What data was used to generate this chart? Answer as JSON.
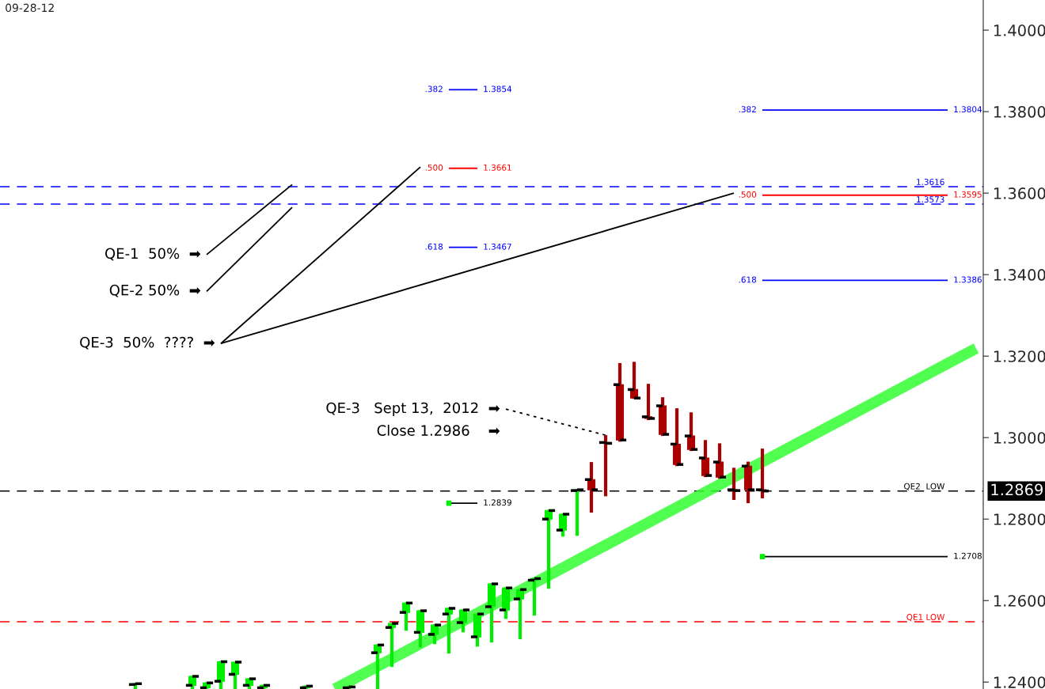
{
  "chart_data": {
    "type": "candlestick",
    "title": "09-28-12",
    "colors": [
      null,
      null,
      null,
      null,
      null,
      null,
      null,
      null,
      null,
      "#00ee00",
      null,
      null,
      null,
      "#00ee00",
      "#00ee00",
      "#00ee00",
      "#00ee00",
      "#00ee00",
      "#00ee00",
      null,
      null,
      "#00ee00",
      null,
      null,
      "#00ee00",
      null,
      "#00ee00",
      "#00ee00",
      "#00ee00",
      "#00ee00",
      "#00ee00",
      "#00ee00",
      "#00ee00",
      "#00ee00",
      "#00ee00",
      "#00ee00",
      "#00ee00",
      "#00ee00",
      "#00ee00",
      "#00ee00",
      "#00ee00",
      "#aa0000",
      "#aa0000",
      "#aa0000",
      "#aa0000",
      "#aa0000",
      "#aa0000",
      "#aa0000",
      "#aa0000",
      "#aa0000",
      "#aa0000",
      "#aa0000",
      "#aa0000",
      "#aa0000",
      null,
      null,
      null,
      null,
      null,
      null,
      null,
      null,
      null,
      null,
      null,
      null,
      null,
      null,
      null
    ],
    "categories": [
      null,
      null,
      null,
      null,
      null,
      null,
      null,
      null,
      null,
      null,
      null,
      null,
      null,
      null,
      null,
      null,
      null,
      null,
      null,
      null,
      null,
      null,
      null,
      null,
      null,
      null,
      null,
      null,
      null,
      null,
      null,
      null,
      null,
      null,
      null,
      null,
      null,
      null,
      null,
      null,
      null,
      null,
      null,
      null,
      null,
      null,
      null,
      null,
      null,
      null,
      null,
      null,
      null,
      null,
      null,
      null,
      null,
      null,
      null,
      null,
      null,
      null,
      null,
      null,
      null,
      null,
      null,
      null,
      null
    ],
    "ohlc": [
      null,
      null,
      null,
      null,
      null,
      null,
      null,
      null,
      null,
      [
        1.2394,
        1.2398,
        1.2383,
        1.2396
      ],
      null,
      null,
      null,
      [
        1.2392,
        1.2416,
        1.2383,
        1.2414
      ],
      [
        1.2386,
        1.24,
        1.2383,
        1.2398
      ],
      [
        1.2402,
        1.2452,
        1.2383,
        1.245
      ],
      [
        1.2419,
        1.245,
        1.2383,
        1.2449
      ],
      [
        1.2392,
        1.241,
        1.2383,
        1.2408
      ],
      [
        1.2386,
        1.2394,
        1.2383,
        1.2392
      ],
      null,
      null,
      [
        1.2386,
        1.2392,
        1.2383,
        1.239
      ],
      null,
      null,
      [
        1.2386,
        1.2392,
        1.2383,
        1.2388
      ],
      null,
      [
        1.2472,
        1.2493,
        1.2383,
        1.2491
      ],
      [
        1.2534,
        1.2544,
        1.2437,
        1.2544
      ],
      [
        1.2571,
        1.2596,
        1.2526,
        1.2594
      ],
      [
        1.2522,
        1.2577,
        1.2485,
        1.2575
      ],
      [
        1.2517,
        1.2542,
        1.2493,
        1.254
      ],
      [
        1.2567,
        1.2583,
        1.247,
        1.2581
      ],
      [
        1.2546,
        1.2579,
        1.2522,
        1.2577
      ],
      [
        1.2511,
        1.2569,
        1.2487,
        1.2567
      ],
      [
        1.2585,
        1.2643,
        1.2497,
        1.2641
      ],
      [
        1.2577,
        1.2633,
        1.2555,
        1.2631
      ],
      [
        1.2604,
        1.2629,
        1.2505,
        1.2627
      ],
      [
        1.265,
        1.2656,
        1.2563,
        1.2654
      ],
      [
        1.28,
        1.2823,
        1.2629,
        1.2821
      ],
      [
        1.2773,
        1.2814,
        1.2757,
        1.2812
      ],
      [
        1.287,
        1.2874,
        1.2759,
        1.2872
      ],
      [
        1.2897,
        1.294,
        1.2816,
        1.2872
      ],
      [
        1.2988,
        1.3006,
        1.2856,
        1.2986
      ],
      [
        1.313,
        1.3183,
        1.299,
        1.2994
      ],
      [
        1.3118,
        1.3186,
        1.3095,
        1.3097
      ],
      [
        1.3051,
        1.3132,
        1.3043,
        1.3047
      ],
      [
        1.3078,
        1.3099,
        1.3004,
        1.3008
      ],
      [
        1.2984,
        1.3072,
        1.293,
        1.2934
      ],
      [
        1.3004,
        1.3062,
        1.2967,
        1.2971
      ],
      [
        1.295,
        1.2994,
        1.2903,
        1.2907
      ],
      [
        1.294,
        1.2986,
        1.2899,
        1.2903
      ],
      [
        1.2872,
        1.2926,
        1.2847,
        1.287
      ],
      [
        1.293,
        1.2941,
        1.2839,
        1.2872
      ],
      [
        1.2872,
        1.2973,
        1.2851,
        1.2869
      ],
      null,
      null,
      null,
      null,
      null,
      null,
      null,
      null,
      null,
      null,
      null,
      null,
      null,
      null,
      null
    ],
    "series": [
      {
        "type": "line",
        "color": "#33ff33",
        "values": [
          null,
          null,
          null,
          null,
          null,
          null,
          null,
          null,
          null,
          null,
          null,
          null,
          null,
          null,
          null,
          null,
          null,
          null,
          null,
          null,
          null,
          null,
          null,
          1.2383,
          null,
          null,
          null,
          null,
          null,
          null,
          null,
          null,
          null,
          null,
          null,
          null,
          null,
          null,
          null,
          null,
          null,
          null,
          null,
          null,
          null,
          null,
          null,
          null,
          null,
          null,
          null,
          null,
          null,
          null,
          null,
          null,
          null,
          null,
          null,
          null,
          null,
          null,
          null,
          null,
          null,
          null,
          null,
          null,
          1.3219
        ]
      },
      {
        "type": "line",
        "color": "#0000ff",
        "values": [
          null,
          null,
          null,
          null,
          null,
          null,
          null,
          null,
          null,
          null,
          null,
          null,
          null,
          null,
          null,
          null,
          null,
          null,
          null,
          null,
          null,
          null,
          null,
          null,
          null,
          null,
          null,
          null,
          null,
          null,
          null,
          1.3854,
          null,
          1.3854,
          null,
          null,
          null,
          null,
          null,
          null,
          null,
          null,
          null,
          null,
          null,
          null,
          null,
          null,
          null,
          null,
          null,
          null,
          null,
          null,
          null,
          null,
          null,
          null,
          null,
          null,
          null,
          null,
          null,
          null,
          null,
          null,
          null,
          null,
          null
        ],
        "value_labels": [
          null,
          null,
          null,
          null,
          null,
          null,
          null,
          null,
          null,
          null,
          null,
          null,
          null,
          null,
          null,
          null,
          null,
          null,
          null,
          null,
          null,
          null,
          null,
          null,
          null,
          null,
          null,
          null,
          null,
          null,
          null,
          null,
          null,
          "1.3854",
          null,
          null,
          null,
          null,
          null,
          null,
          null,
          null,
          null,
          null,
          null,
          null,
          null,
          null,
          null,
          null,
          null,
          null,
          null,
          null,
          null,
          null,
          null,
          null,
          null,
          null,
          null,
          null,
          null,
          null,
          null,
          null,
          null,
          null,
          null
        ]
      },
      {
        "type": "line",
        "color": "#ff0000",
        "values": [
          null,
          null,
          null,
          null,
          null,
          null,
          null,
          null,
          null,
          null,
          null,
          null,
          null,
          null,
          null,
          null,
          null,
          null,
          null,
          null,
          null,
          null,
          null,
          null,
          null,
          null,
          null,
          null,
          null,
          null,
          null,
          1.3661,
          null,
          1.3661,
          null,
          null,
          null,
          null,
          null,
          null,
          null,
          null,
          null,
          null,
          null,
          null,
          null,
          null,
          null,
          null,
          null,
          null,
          null,
          null,
          null,
          null,
          null,
          null,
          null,
          null,
          null,
          null,
          null,
          null,
          null,
          null,
          null,
          null,
          null
        ],
        "value_labels": [
          null,
          null,
          null,
          null,
          null,
          null,
          null,
          null,
          null,
          null,
          null,
          null,
          null,
          null,
          null,
          null,
          null,
          null,
          null,
          null,
          null,
          null,
          null,
          null,
          null,
          null,
          null,
          null,
          null,
          null,
          null,
          null,
          null,
          "1.3661",
          null,
          null,
          null,
          null,
          null,
          null,
          null,
          null,
          null,
          null,
          null,
          null,
          null,
          null,
          null,
          null,
          null,
          null,
          null,
          null,
          null,
          null,
          null,
          null,
          null,
          null,
          null,
          null,
          null,
          null,
          null,
          null,
          null,
          null,
          null
        ]
      },
      {
        "type": "line",
        "color": "#0000ff",
        "values": [
          null,
          null,
          null,
          null,
          null,
          null,
          null,
          null,
          null,
          null,
          null,
          null,
          null,
          null,
          null,
          null,
          null,
          null,
          null,
          null,
          null,
          null,
          null,
          null,
          null,
          null,
          null,
          null,
          null,
          null,
          null,
          1.3467,
          null,
          1.3467,
          null,
          null,
          null,
          null,
          null,
          null,
          null,
          null,
          null,
          null,
          null,
          null,
          null,
          null,
          null,
          null,
          null,
          null,
          null,
          null,
          null,
          null,
          null,
          null,
          null,
          null,
          null,
          null,
          null,
          null,
          null,
          null,
          null,
          null,
          null
        ],
        "value_labels": [
          null,
          null,
          null,
          null,
          null,
          null,
          null,
          null,
          null,
          null,
          null,
          null,
          null,
          null,
          null,
          null,
          null,
          null,
          null,
          null,
          null,
          null,
          null,
          null,
          null,
          null,
          null,
          null,
          null,
          null,
          null,
          null,
          null,
          "1.3467",
          null,
          null,
          null,
          null,
          null,
          null,
          null,
          null,
          null,
          null,
          null,
          null,
          null,
          null,
          null,
          null,
          null,
          null,
          null,
          null,
          null,
          null,
          null,
          null,
          null,
          null,
          null,
          null,
          null,
          null,
          null,
          null,
          null,
          null,
          null
        ]
      },
      {
        "type": "line",
        "color": "#0000ff",
        "values": [
          null,
          null,
          null,
          null,
          null,
          null,
          null,
          null,
          null,
          null,
          null,
          null,
          null,
          null,
          null,
          null,
          null,
          null,
          null,
          null,
          null,
          null,
          null,
          null,
          null,
          null,
          null,
          null,
          null,
          null,
          null,
          null,
          null,
          null,
          null,
          null,
          null,
          null,
          null,
          null,
          null,
          null,
          null,
          null,
          null,
          null,
          null,
          null,
          null,
          null,
          null,
          null,
          null,
          1.3804,
          null,
          null,
          null,
          null,
          null,
          null,
          null,
          null,
          null,
          null,
          null,
          null,
          1.3804,
          null,
          null
        ],
        "value_labels": [
          null,
          null,
          null,
          null,
          null,
          null,
          null,
          null,
          null,
          null,
          null,
          null,
          null,
          null,
          null,
          null,
          null,
          null,
          null,
          null,
          null,
          null,
          null,
          null,
          null,
          null,
          null,
          null,
          null,
          null,
          null,
          null,
          null,
          null,
          null,
          null,
          null,
          null,
          null,
          null,
          null,
          null,
          null,
          null,
          null,
          null,
          null,
          null,
          null,
          null,
          null,
          null,
          null,
          null,
          null,
          null,
          null,
          null,
          null,
          null,
          null,
          null,
          null,
          null,
          null,
          null,
          "1.3804",
          null,
          null
        ]
      },
      {
        "type": "line",
        "color": "#ff0000",
        "values": [
          null,
          null,
          null,
          null,
          null,
          null,
          null,
          null,
          null,
          null,
          null,
          null,
          null,
          null,
          null,
          null,
          null,
          null,
          null,
          null,
          null,
          null,
          null,
          null,
          null,
          null,
          null,
          null,
          null,
          null,
          null,
          null,
          null,
          null,
          null,
          null,
          null,
          null,
          null,
          null,
          null,
          null,
          null,
          null,
          null,
          null,
          null,
          null,
          null,
          null,
          null,
          null,
          null,
          1.3595,
          null,
          null,
          null,
          null,
          null,
          null,
          null,
          null,
          null,
          null,
          null,
          null,
          1.3595,
          null,
          null
        ],
        "value_labels": [
          null,
          null,
          null,
          null,
          null,
          null,
          null,
          null,
          null,
          null,
          null,
          null,
          null,
          null,
          null,
          null,
          null,
          null,
          null,
          null,
          null,
          null,
          null,
          null,
          null,
          null,
          null,
          null,
          null,
          null,
          null,
          null,
          null,
          null,
          null,
          null,
          null,
          null,
          null,
          null,
          null,
          null,
          null,
          null,
          null,
          null,
          null,
          null,
          null,
          null,
          null,
          null,
          null,
          null,
          null,
          null,
          null,
          null,
          null,
          null,
          null,
          null,
          null,
          null,
          null,
          null,
          "1.3595",
          null,
          null
        ]
      },
      {
        "type": "line",
        "color": "#0000ff",
        "values": [
          null,
          null,
          null,
          null,
          null,
          null,
          null,
          null,
          null,
          null,
          null,
          null,
          null,
          null,
          null,
          null,
          null,
          null,
          null,
          null,
          null,
          null,
          null,
          null,
          null,
          null,
          null,
          null,
          null,
          null,
          null,
          null,
          null,
          null,
          null,
          null,
          null,
          null,
          null,
          null,
          null,
          null,
          null,
          null,
          null,
          null,
          null,
          null,
          null,
          null,
          null,
          null,
          null,
          1.3386,
          null,
          null,
          null,
          null,
          null,
          null,
          null,
          null,
          null,
          null,
          null,
          null,
          1.3386,
          null,
          null
        ],
        "value_labels": [
          null,
          null,
          null,
          null,
          null,
          null,
          null,
          null,
          null,
          null,
          null,
          null,
          null,
          null,
          null,
          null,
          null,
          null,
          null,
          null,
          null,
          null,
          null,
          null,
          null,
          null,
          null,
          null,
          null,
          null,
          null,
          null,
          null,
          null,
          null,
          null,
          null,
          null,
          null,
          null,
          null,
          null,
          null,
          null,
          null,
          null,
          null,
          null,
          null,
          null,
          null,
          null,
          null,
          null,
          null,
          null,
          null,
          null,
          null,
          null,
          null,
          null,
          null,
          null,
          null,
          null,
          "1.3386",
          null,
          null
        ]
      },
      {
        "type": "line",
        "color": "#000000",
        "values": [
          null,
          null,
          null,
          null,
          null,
          null,
          null,
          null,
          null,
          null,
          null,
          null,
          null,
          null,
          null,
          null,
          null,
          null,
          null,
          null,
          null,
          null,
          null,
          null,
          null,
          null,
          null,
          null,
          null,
          null,
          null,
          1.2839,
          null,
          1.2839,
          null,
          null,
          null,
          null,
          null,
          null,
          null,
          null,
          null,
          null,
          null,
          null,
          null,
          null,
          null,
          null,
          null,
          null,
          null,
          null,
          null,
          null,
          null,
          null,
          null,
          null,
          null,
          null,
          null,
          null,
          null,
          null,
          null,
          null,
          null
        ],
        "value_labels": [
          null,
          null,
          null,
          null,
          null,
          null,
          null,
          null,
          null,
          null,
          null,
          null,
          null,
          null,
          null,
          null,
          null,
          null,
          null,
          null,
          null,
          null,
          null,
          null,
          null,
          null,
          null,
          null,
          null,
          null,
          null,
          null,
          null,
          "1.2839",
          null,
          null,
          null,
          null,
          null,
          null,
          null,
          null,
          null,
          null,
          null,
          null,
          null,
          null,
          null,
          null,
          null,
          null,
          null,
          null,
          null,
          null,
          null,
          null,
          null,
          null,
          null,
          null,
          null,
          null,
          null,
          null,
          null,
          null,
          null
        ]
      },
      {
        "type": "line",
        "color": "#000000",
        "values": [
          null,
          null,
          null,
          null,
          null,
          null,
          null,
          null,
          null,
          null,
          null,
          null,
          null,
          null,
          null,
          null,
          null,
          null,
          null,
          null,
          null,
          null,
          null,
          null,
          null,
          null,
          null,
          null,
          null,
          null,
          null,
          null,
          null,
          null,
          null,
          null,
          null,
          null,
          null,
          null,
          null,
          null,
          null,
          null,
          null,
          null,
          null,
          null,
          null,
          null,
          null,
          null,
          null,
          1.2708,
          null,
          null,
          null,
          null,
          null,
          null,
          null,
          null,
          null,
          null,
          null,
          null,
          1.2708,
          null,
          null
        ],
        "value_labels": [
          null,
          null,
          null,
          null,
          null,
          null,
          null,
          null,
          null,
          null,
          null,
          null,
          null,
          null,
          null,
          null,
          null,
          null,
          null,
          null,
          null,
          null,
          null,
          null,
          null,
          null,
          null,
          null,
          null,
          null,
          null,
          null,
          null,
          null,
          null,
          null,
          null,
          null,
          null,
          null,
          null,
          null,
          null,
          null,
          null,
          null,
          null,
          null,
          null,
          null,
          null,
          null,
          null,
          null,
          null,
          null,
          null,
          null,
          null,
          null,
          null,
          null,
          null,
          null,
          null,
          null,
          "1.2708",
          null,
          null
        ]
      },
      {
        "type": "line",
        "color": "#000000",
        "values": [
          null,
          null,
          null,
          null,
          null,
          null,
          null,
          null,
          null,
          null,
          null,
          null,
          null,
          null,
          1.3449,
          null,
          null,
          null,
          null,
          null,
          1.3621,
          null,
          null,
          null,
          null,
          null,
          null,
          null,
          null,
          null,
          null,
          null,
          null,
          null,
          null,
          null,
          null,
          null,
          null,
          null,
          null,
          null,
          null,
          null,
          null,
          null,
          null,
          null,
          null,
          null,
          null,
          null,
          null,
          null,
          null,
          null,
          null,
          null,
          null,
          null,
          null,
          null,
          null,
          null,
          null,
          null,
          null,
          null,
          null
        ]
      },
      {
        "type": "line",
        "color": "#000000",
        "values": [
          null,
          null,
          null,
          null,
          null,
          null,
          null,
          null,
          null,
          null,
          null,
          null,
          null,
          null,
          1.3359,
          null,
          null,
          null,
          null,
          null,
          1.3565,
          null,
          null,
          null,
          null,
          null,
          null,
          null,
          null,
          null,
          null,
          null,
          null,
          null,
          null,
          null,
          null,
          null,
          null,
          null,
          null,
          null,
          null,
          null,
          null,
          null,
          null,
          null,
          null,
          null,
          null,
          null,
          null,
          null,
          null,
          null,
          null,
          null,
          null,
          null,
          null,
          null,
          null,
          null,
          null,
          null,
          null,
          null,
          null
        ]
      },
      {
        "type": "line",
        "color": "#000000",
        "values": [
          null,
          null,
          null,
          null,
          null,
          null,
          null,
          null,
          null,
          null,
          null,
          null,
          null,
          null,
          null,
          1.3231,
          null,
          null,
          null,
          null,
          null,
          null,
          null,
          null,
          null,
          null,
          null,
          null,
          null,
          1.3664,
          null,
          null,
          null,
          null,
          null,
          null,
          null,
          null,
          null,
          null,
          null,
          null,
          null,
          null,
          null,
          null,
          null,
          null,
          null,
          null,
          null,
          null,
          null,
          null,
          null,
          null,
          null,
          null,
          null,
          null,
          null,
          null,
          null,
          null,
          null,
          null,
          null,
          null,
          null
        ]
      },
      {
        "type": "line",
        "color": "#000000",
        "values": [
          null,
          null,
          null,
          null,
          null,
          null,
          null,
          null,
          null,
          null,
          null,
          null,
          null,
          null,
          null,
          1.3231,
          null,
          null,
          null,
          null,
          null,
          null,
          null,
          null,
          null,
          null,
          null,
          null,
          null,
          null,
          null,
          null,
          null,
          null,
          null,
          null,
          null,
          null,
          null,
          null,
          null,
          null,
          null,
          null,
          null,
          null,
          null,
          null,
          null,
          null,
          null,
          1.36,
          null,
          null,
          null,
          null,
          null,
          null,
          null,
          null,
          null,
          null,
          null,
          null,
          null,
          null,
          null,
          null,
          null
        ]
      },
      {
        "type": "line",
        "color": "#000000",
        "line_style": "dotted",
        "values": [
          null,
          null,
          null,
          null,
          null,
          null,
          null,
          null,
          null,
          null,
          null,
          null,
          null,
          null,
          null,
          null,
          null,
          null,
          null,
          null,
          null,
          null,
          null,
          null,
          null,
          null,
          null,
          null,
          null,
          null,
          null,
          null,
          null,
          null,
          null,
          1.307,
          null,
          null,
          null,
          null,
          null,
          null,
          1.3006,
          null,
          null,
          null,
          null,
          null,
          null,
          null,
          null,
          null,
          null,
          null,
          null,
          null,
          null,
          null,
          null,
          null,
          null,
          null,
          null,
          null,
          null,
          null,
          null,
          null,
          null
        ]
      }
    ],
    "ref_lines": [
      {
        "axis": "y",
        "value": 1.2869,
        "label": "QE2  LOW",
        "color": "#000000",
        "line_style": "dashed"
      },
      {
        "axis": "y",
        "value": 1.2548,
        "label": "QE1 LOW",
        "color": "#ff0000",
        "line_style": "dashed"
      },
      {
        "axis": "y",
        "value": 1.3616,
        "label": "1.3616",
        "color": "#0000ff",
        "line_style": "dashed"
      },
      {
        "axis": "y",
        "value": 1.3573,
        "label": "1.3573",
        "color": "#0000ff",
        "line_style": "dashed"
      }
    ],
    "annotations": [
      "1.2869",
      ".382",
      ".500",
      ".618",
      ".382",
      ".500",
      ".618",
      "QE-1  50%  ➡",
      "QE-2 50%  ➡",
      "QE-3  50%  ????  ➡",
      "QE-3   Sept 13,  2012  ➡",
      "Close 1.2986    ➡"
    ],
    "ylim": [
      1.2383,
      1.4074
    ],
    "yticks": [
      {
        "value": 1.24,
        "label": "1.2400"
      },
      {
        "value": 1.26,
        "label": "1.2600"
      },
      {
        "value": 1.28,
        "label": "1.2800"
      },
      {
        "value": 1.3,
        "label": "1.3000"
      },
      {
        "value": 1.32,
        "label": "1.3200"
      },
      {
        "value": 1.34,
        "label": "1.3400"
      },
      {
        "value": 1.36,
        "label": "1.3600"
      },
      {
        "value": 1.38,
        "label": "1.3800"
      },
      {
        "value": 1.4,
        "label": "1.4000"
      }
    ],
    "tick_labels": "y",
    "grid": false,
    "legend": false
  }
}
